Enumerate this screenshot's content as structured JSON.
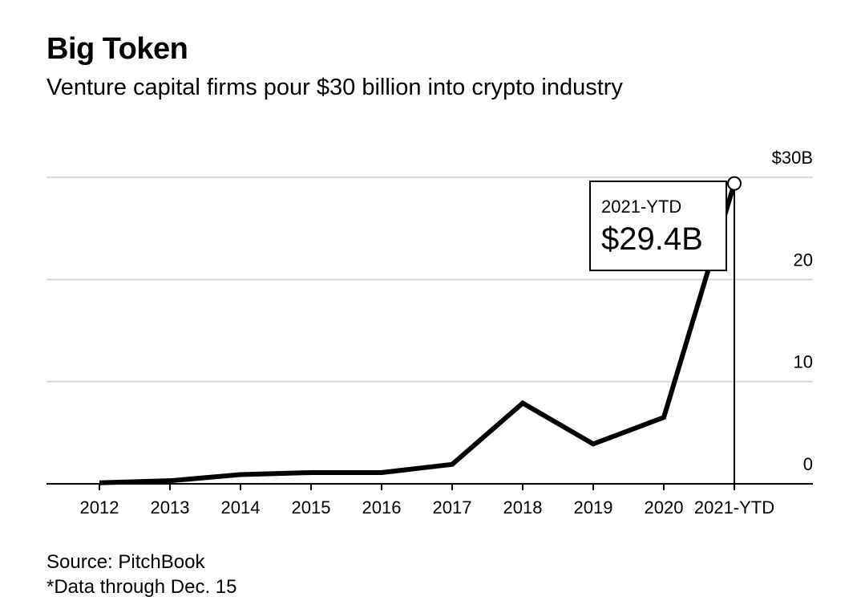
{
  "header": {
    "title": "Big Token",
    "subtitle": "Venture capital firms pour $30 billion into crypto industry"
  },
  "footer": {
    "source": "Source: PitchBook",
    "note": "*Data through Dec. 15"
  },
  "chart_data": {
    "type": "line",
    "title": "Big Token",
    "subtitle": "Venture capital firms pour $30 billion into crypto industry",
    "xlabel": "",
    "ylabel": "",
    "categories": [
      "2012",
      "2013",
      "2014",
      "2015",
      "2016",
      "2017",
      "2018",
      "2019",
      "2020",
      "2021-YTD"
    ],
    "series": [
      {
        "values": [
          0.1,
          0.3,
          0.9,
          1.1,
          1.1,
          1.9,
          7.9,
          3.9,
          6.5,
          29.4
        ]
      }
    ],
    "ylim": [
      0,
      30
    ],
    "yticks": [
      0,
      10,
      20,
      30
    ],
    "ytick_labels": [
      "0",
      "10",
      "20",
      "$30B"
    ],
    "y_axis_position": "right",
    "grid": true,
    "legend": "none",
    "annotation": {
      "label": "2021-YTD",
      "value_text": "$29.4B"
    },
    "colors": {
      "line": "#000000",
      "grid": "#d9d9d9",
      "text": "#000000"
    }
  }
}
